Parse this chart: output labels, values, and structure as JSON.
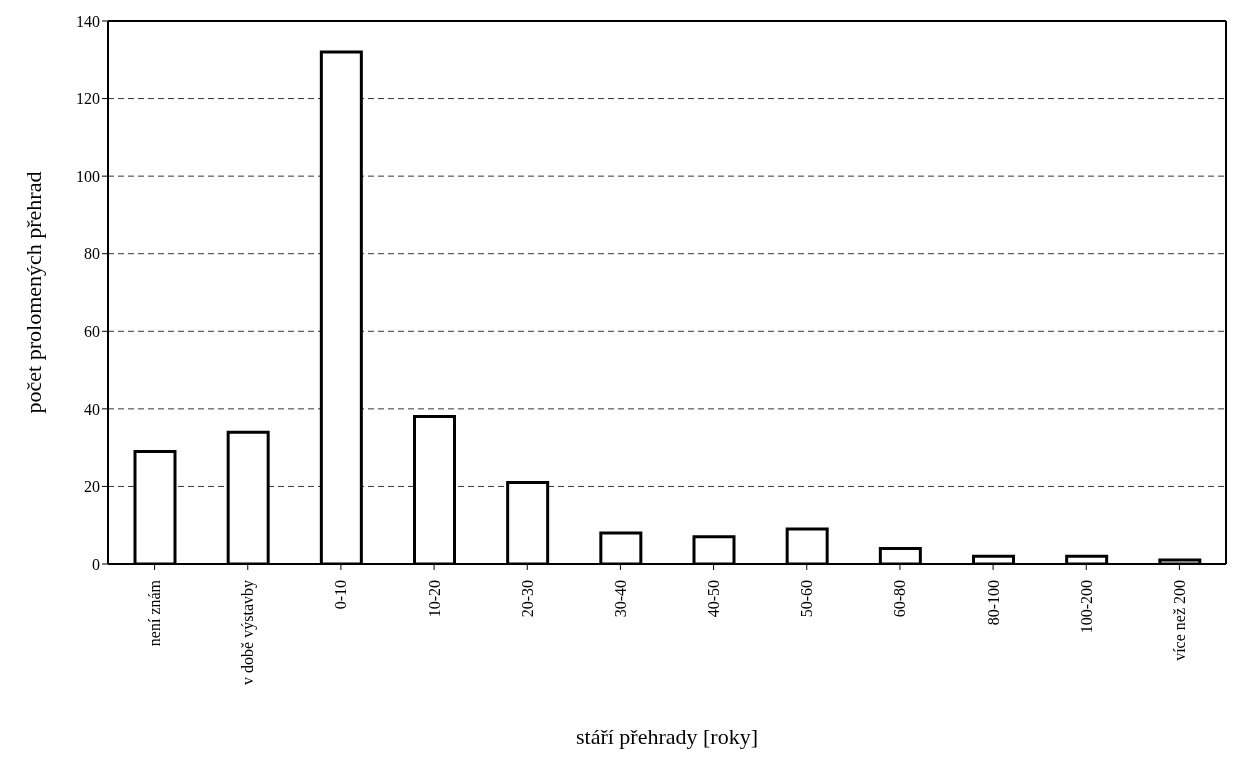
{
  "chart_data": {
    "type": "bar",
    "xlabel": "stáří přehrady [roky]",
    "ylabel": "počet prolomených přehrad",
    "categories": [
      "není znám",
      "v době výstavby",
      "0-10",
      "10-20",
      "20-30",
      "30-40",
      "40-50",
      "50-60",
      "60-80",
      "80-100",
      "100-200",
      "více než 200"
    ],
    "values": [
      29,
      34,
      132,
      38,
      21,
      8,
      7,
      9,
      4,
      2,
      2,
      1
    ],
    "color": "#ffffff",
    "ylim": [
      0,
      140
    ],
    "yticks": [
      0,
      20,
      40,
      60,
      80,
      100,
      120,
      140
    ],
    "grid": "y"
  }
}
